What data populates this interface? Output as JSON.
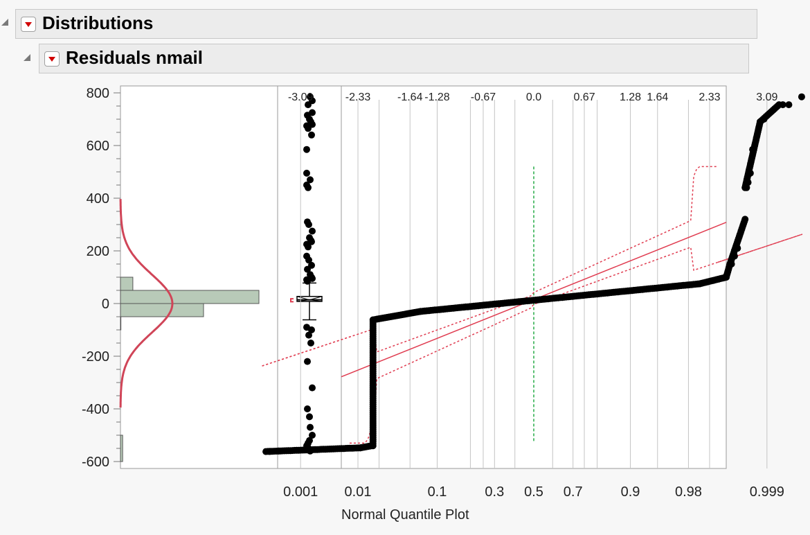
{
  "headers": {
    "outer_title": "Distributions",
    "inner_title": "Residuals nmail"
  },
  "colors": {
    "histogram_fill": "#b8cab8",
    "histogram_stroke": "#555555",
    "normal_curve": "#d04558",
    "reference_line": "#e03c50",
    "median_line": "#22aa44",
    "points": "#000000",
    "hotspot_arrow": "#d10000"
  },
  "chart_data": {
    "type": "scatter",
    "title": "",
    "ylim": [
      -620,
      820
    ],
    "y_ticks": [
      -600,
      -400,
      -200,
      0,
      200,
      400,
      600,
      800
    ],
    "y_tick_labels": [
      "-600",
      "-400",
      "-200",
      "0",
      "200",
      "400",
      "600",
      "800"
    ],
    "histogram": {
      "bin_width": 50,
      "bins": [
        {
          "lo": -600,
          "hi": -500,
          "count": 30
        },
        {
          "lo": -100,
          "hi": -50,
          "count": 6
        },
        {
          "lo": -50,
          "hi": 0,
          "count": 1140
        },
        {
          "lo": 0,
          "hi": 50,
          "count": 1900
        },
        {
          "lo": 50,
          "hi": 100,
          "count": 170
        }
      ],
      "normal_fit": {
        "mean": 0,
        "sd": 110
      }
    },
    "box_plot": {
      "q1": 8,
      "median": 14,
      "q3": 27,
      "whisker_low": -62,
      "whisker_high": 78,
      "shortest_half": [
        7,
        18
      ]
    },
    "outliers": [
      785,
      770,
      755,
      725,
      715,
      700,
      690,
      680,
      675,
      665,
      640,
      585,
      495,
      470,
      450,
      440,
      310,
      300,
      275,
      250,
      240,
      235,
      225,
      215,
      180,
      165,
      145,
      130,
      110,
      100,
      95,
      90,
      85,
      -90,
      -100,
      -120,
      -150,
      -220,
      -320,
      -400,
      -430,
      -470,
      -500,
      -520,
      -530,
      -540,
      -548,
      -556,
      -560
    ],
    "normal_quantile_plot": {
      "xlabel": "Normal Quantile Plot",
      "top_axis_ticks": [
        "-3.09",
        "-2.33",
        "-1.64",
        "-1.28",
        "-0.67",
        "0.0",
        "0.67",
        "1.28",
        "1.64",
        "2.33",
        "3.09"
      ],
      "bottom_axis_ticks": [
        "0.001",
        "0.01",
        "0.1",
        "0.3",
        "0.5",
        "0.7",
        "0.9",
        "0.98",
        "0.999"
      ],
      "gridline_quantiles": [
        -3.09,
        -2.33,
        -2.05,
        -1.64,
        -1.28,
        -0.84,
        -0.67,
        -0.52,
        -0.25,
        0.25,
        0.52,
        0.67,
        0.84,
        1.28,
        1.64,
        2.05,
        2.33,
        3.09
      ],
      "median_quantile": 0,
      "xlim": [
        -3.6,
        3.6
      ],
      "reference_line": {
        "intercept": 15,
        "slope": 115
      },
      "segments": [
        {
          "z_from": -3.55,
          "z_to": -2.3,
          "y_from": -562,
          "y_to": -548
        },
        {
          "z_from": -2.3,
          "z_to": -2.15,
          "y_from": -548,
          "y_to": -540
        },
        {
          "z_from": -2.13,
          "z_to": -2.13,
          "y_from": -540,
          "y_to": -62
        },
        {
          "z_from": -2.13,
          "z_to": -1.5,
          "y_from": -62,
          "y_to": -30
        },
        {
          "z_from": -1.5,
          "z_to": 2.2,
          "y_from": -30,
          "y_to": 75
        },
        {
          "z_from": 2.2,
          "z_to": 2.55,
          "y_from": 75,
          "y_to": 100
        },
        {
          "z_from": 2.55,
          "z_to": 2.6,
          "y_from": 100,
          "y_to": 150
        },
        {
          "z_from": 2.6,
          "z_to": 2.8,
          "y_from": 150,
          "y_to": 320
        },
        {
          "z_from": 2.8,
          "z_to": 3.0,
          "y_from": 440,
          "y_to": 690
        },
        {
          "z_from": 3.0,
          "z_to": 3.25,
          "y_from": 690,
          "y_to": 755
        }
      ],
      "extreme_points": [
        {
          "z": -3.5,
          "y": -562
        },
        {
          "z": -3.38,
          "y": -560
        },
        {
          "z": 2.62,
          "y": 150
        },
        {
          "z": 2.66,
          "y": 180
        },
        {
          "z": 2.7,
          "y": 210
        },
        {
          "z": 2.82,
          "y": 440
        },
        {
          "z": 2.84,
          "y": 460
        },
        {
          "z": 2.87,
          "y": 495
        },
        {
          "z": 2.9,
          "y": 585
        },
        {
          "z": 3.05,
          "y": 700
        },
        {
          "z": 3.3,
          "y": 755
        },
        {
          "z": 3.38,
          "y": 755
        },
        {
          "z": 3.55,
          "y": 785
        }
      ]
    }
  }
}
